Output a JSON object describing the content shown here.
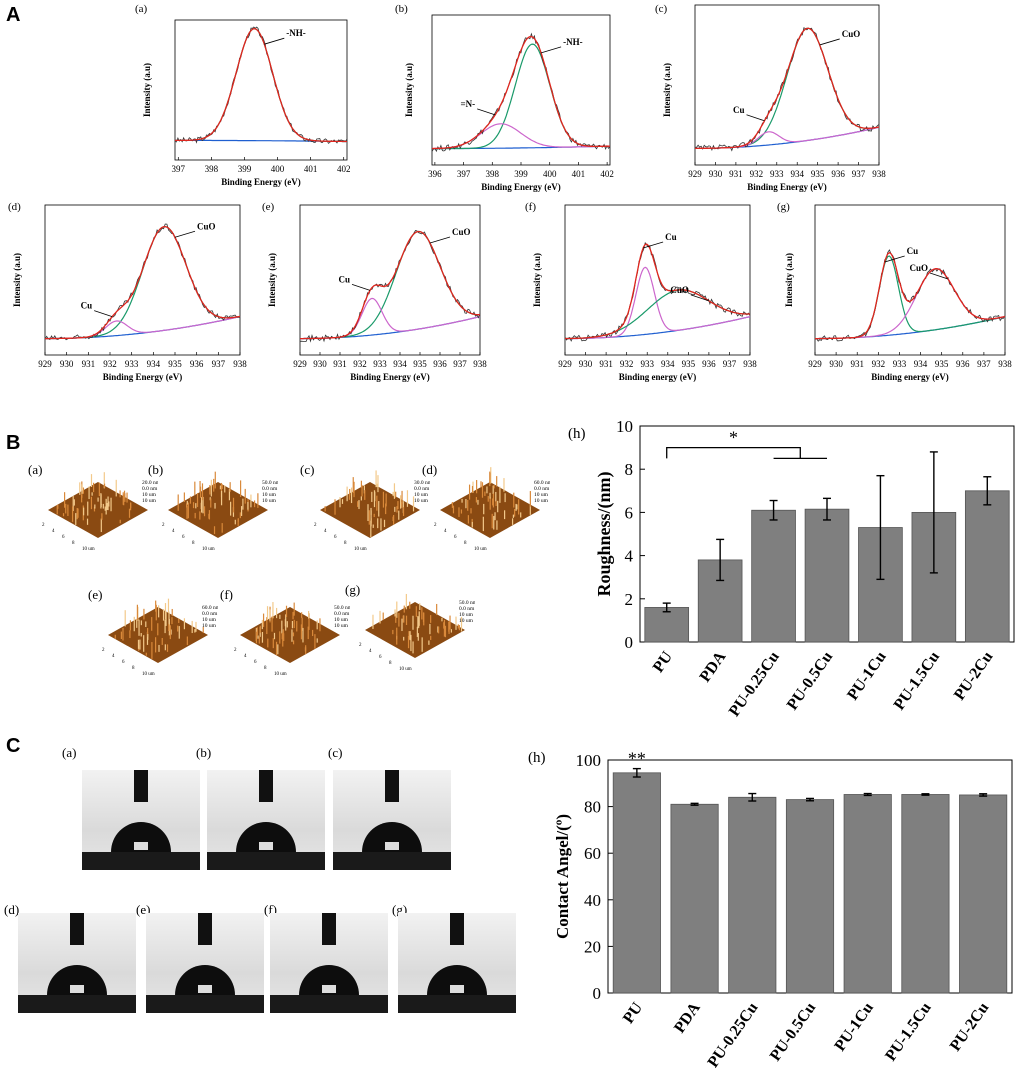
{
  "sections": {
    "a": "A",
    "b": "B",
    "c": "C"
  },
  "xps": {
    "y_label": "Intensity (a.u)",
    "panels": [
      {
        "id": "(a)",
        "xlabel": "Binding Energy (eV)",
        "ticks": [
          397,
          398,
          399,
          400,
          401,
          402
        ],
        "xlim": [
          396.9,
          402.1
        ],
        "peaks": [
          {
            "label": "-NH-",
            "center": 399.3,
            "sigma": 0.55,
            "amp": 1.0,
            "color": "#1a9a6a"
          }
        ],
        "bg": [
          0.05,
          0.04
        ],
        "annots": [
          {
            "text": "-NH-",
            "at": 399.6
          }
        ]
      },
      {
        "id": "(b)",
        "xlabel": "Binding Energy (eV)",
        "ticks": [
          396,
          397,
          398,
          399,
          400,
          401,
          402
        ],
        "xlim": [
          395.9,
          402.1
        ],
        "peaks": [
          {
            "label": "-NH-",
            "center": 399.4,
            "sigma": 0.6,
            "amp": 0.85,
            "color": "#1a9a6a"
          },
          {
            "label": "=N-",
            "center": 398.3,
            "sigma": 0.7,
            "amp": 0.2,
            "color": "#cc66cc"
          }
        ],
        "bg": [
          0.02,
          0.04
        ],
        "annots": [
          {
            "text": "-NH-",
            "at": 399.7
          },
          {
            "text": "=N-",
            "at": 398.1
          }
        ]
      },
      {
        "id": "(c)",
        "xlabel": "Binding Energy (eV)",
        "ticks": [
          929,
          930,
          931,
          932,
          933,
          934,
          935,
          936,
          937,
          938
        ],
        "xlim": [
          929,
          938
        ],
        "peaks": [
          {
            "label": "CuO",
            "center": 934.5,
            "sigma": 1.0,
            "amp": 0.85,
            "color": "#1a9a6a"
          },
          {
            "label": "Cu",
            "center": 932.6,
            "sigma": 0.5,
            "amp": 0.1,
            "color": "#cc66cc"
          }
        ],
        "bg": [
          0.02,
          0.18
        ],
        "annots": [
          {
            "text": "CuO",
            "at": 935.1
          },
          {
            "text": "Cu",
            "at": 932.4
          }
        ]
      },
      {
        "id": "(d)",
        "xlabel": "Binding Energy (eV)",
        "ticks": [
          929,
          930,
          931,
          932,
          933,
          934,
          935,
          936,
          937,
          938
        ],
        "xlim": [
          929,
          938
        ],
        "peaks": [
          {
            "label": "CuO",
            "center": 934.5,
            "sigma": 1.0,
            "amp": 0.85,
            "color": "#1a9a6a"
          },
          {
            "label": "Cu",
            "center": 932.3,
            "sigma": 0.5,
            "amp": 0.12,
            "color": "#cc66cc"
          }
        ],
        "bg": [
          0.02,
          0.2
        ],
        "annots": [
          {
            "text": "CuO",
            "at": 935.0
          },
          {
            "text": "Cu",
            "at": 932.1
          }
        ]
      },
      {
        "id": "(e)",
        "xlabel": "Binding Energy (eV)",
        "ticks": [
          929,
          930,
          931,
          932,
          933,
          934,
          935,
          936,
          937,
          938
        ],
        "xlim": [
          929,
          938
        ],
        "peaks": [
          {
            "label": "CuO",
            "center": 934.9,
            "sigma": 1.1,
            "amp": 0.8,
            "color": "#1a9a6a"
          },
          {
            "label": "Cu",
            "center": 932.6,
            "sigma": 0.5,
            "amp": 0.3,
            "color": "#cc66cc"
          }
        ],
        "bg": [
          0.02,
          0.2
        ],
        "annots": [
          {
            "text": "CuO",
            "at": 935.5
          },
          {
            "text": "Cu",
            "at": 932.5
          }
        ]
      },
      {
        "id": "(f)",
        "xlabel": "Binding energy (eV)",
        "ticks": [
          929,
          930,
          931,
          932,
          933,
          934,
          935,
          936,
          937,
          938
        ],
        "xlim": [
          929,
          938
        ],
        "peaks": [
          {
            "label": "Cu",
            "center": 932.9,
            "sigma": 0.45,
            "amp": 0.55,
            "color": "#cc66cc"
          },
          {
            "label": "CuO",
            "center": 934.5,
            "sigma": 1.5,
            "amp": 0.33,
            "color": "#1a9a6a"
          }
        ],
        "bg": [
          0.02,
          0.2
        ],
        "annots": [
          {
            "text": "Cu",
            "at": 932.8
          },
          {
            "text": "CuO",
            "at": 936.0
          }
        ]
      },
      {
        "id": "(g)",
        "xlabel": "Binding energy (eV)",
        "ticks": [
          929,
          930,
          931,
          932,
          933,
          934,
          935,
          936,
          937,
          938
        ],
        "xlim": [
          929,
          938
        ],
        "peaks": [
          {
            "label": "Cu",
            "center": 932.5,
            "sigma": 0.45,
            "amp": 0.65,
            "color": "#1a9a6a"
          },
          {
            "label": "CuO",
            "center": 934.7,
            "sigma": 0.9,
            "amp": 0.5,
            "color": "#cc66cc"
          }
        ],
        "bg": [
          0.02,
          0.2
        ],
        "annots": [
          {
            "text": "Cu",
            "at": 932.3
          },
          {
            "text": "CuO",
            "at": 935.3
          }
        ]
      }
    ]
  },
  "afm": {
    "panels": [
      {
        "id": "(a)",
        "scale": [
          "20.0 nm",
          "0.0 nm",
          "10 um",
          "10 um"
        ]
      },
      {
        "id": "(b)",
        "scale": [
          "50.0 nm",
          "0.0 nm",
          "10 um",
          "10 um"
        ]
      },
      {
        "id": "(c)",
        "scale": [
          "30.0 nm",
          "0.0 nm",
          "10 um",
          "10 um"
        ]
      },
      {
        "id": "(d)",
        "scale": [
          "60.0 nm",
          "0.0 nm",
          "10 um",
          "10 um"
        ]
      },
      {
        "id": "(e)",
        "scale": [
          "60.0 nm",
          "0.0 nm",
          "10 um",
          "10 um"
        ]
      },
      {
        "id": "(f)",
        "scale": [
          "50.0 nm",
          "0.0 nm",
          "10 um",
          "10 um"
        ]
      },
      {
        "id": "(g)",
        "scale": [
          "50.0 nm",
          "0.0 nm",
          "10 um",
          "10 um"
        ]
      }
    ],
    "axis_ticks": [
      "2",
      "4",
      "6",
      "8",
      "10 um"
    ]
  },
  "drops": {
    "panels": [
      "(a)",
      "(b)",
      "(c)",
      "(d)",
      "(e)",
      "(f)",
      "(g)"
    ]
  },
  "chart_data": [
    {
      "type": "bar",
      "panel": "(h)",
      "title": "",
      "categories": [
        "PU",
        "PDA",
        "PU-0.25Cu",
        "PU-0.5Cu",
        "PU-1Cu",
        "PU-1.5Cu",
        "PU-2Cu"
      ],
      "values": [
        1.6,
        3.8,
        6.1,
        6.15,
        5.3,
        6.0,
        7.0
      ],
      "errors": [
        0.2,
        0.95,
        0.45,
        0.5,
        2.4,
        2.8,
        0.65
      ],
      "ylabel": "Roughness/(nm)",
      "ylim": [
        0,
        10
      ],
      "yticks": [
        0,
        2,
        4,
        6,
        8,
        10
      ],
      "significance": {
        "text": "*",
        "from": "PU",
        "to": [
          "PU-0.25Cu",
          "PU-0.5Cu"
        ]
      }
    },
    {
      "type": "bar",
      "panel": "(h)",
      "title": "",
      "categories": [
        "PU",
        "PDA",
        "PU-0.25Cu",
        "PU-0.5Cu",
        "PU-1Cu",
        "PU-1.5Cu",
        "PU-2Cu"
      ],
      "values": [
        94.5,
        81.0,
        84.0,
        83.0,
        85.2,
        85.2,
        85.0
      ],
      "errors": [
        1.8,
        0.4,
        1.6,
        0.5,
        0.4,
        0.3,
        0.5
      ],
      "ylabel": "Contact Angel/(º)",
      "ylim": [
        0,
        100
      ],
      "yticks": [
        0,
        20,
        40,
        60,
        80,
        100
      ],
      "significance": {
        "text": "**",
        "on": "PU"
      }
    }
  ]
}
